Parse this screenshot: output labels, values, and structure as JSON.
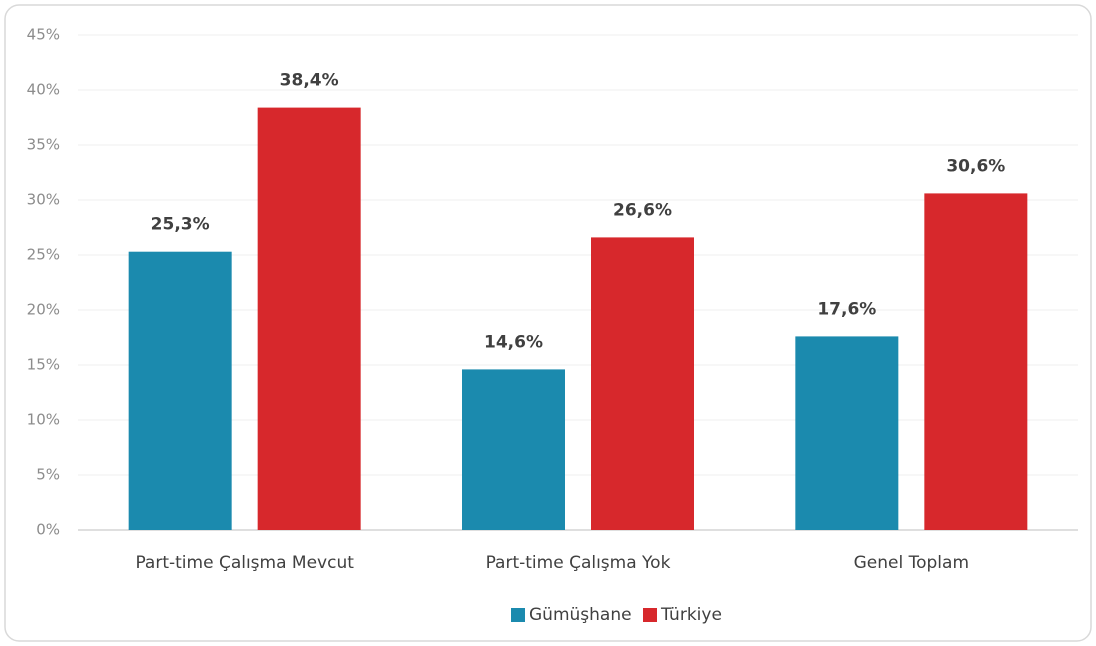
{
  "chart_data": {
    "type": "bar",
    "categories": [
      "Part-time Çalışma Mevcut",
      "Part-time Çalışma Yok",
      "Genel Toplam"
    ],
    "series": [
      {
        "name": "Gümüşhane",
        "color": "#1b8aae",
        "values": [
          25.3,
          14.6,
          17.6
        ],
        "value_labels": [
          "25,3%",
          "14,6%",
          "17,6%"
        ]
      },
      {
        "name": "Türkiye",
        "color": "#d7282c",
        "values": [
          38.4,
          26.6,
          30.6
        ],
        "value_labels": [
          "38,4%",
          "26,6%",
          "30,6%"
        ]
      }
    ],
    "ylim": [
      0,
      45
    ],
    "yticks": [
      {
        "value": 0,
        "label": "0%"
      },
      {
        "value": 5,
        "label": "5%"
      },
      {
        "value": 10,
        "label": "10%"
      },
      {
        "value": 15,
        "label": "15%"
      },
      {
        "value": 20,
        "label": "20%"
      },
      {
        "value": 25,
        "label": "25%"
      },
      {
        "value": 30,
        "label": "30%"
      },
      {
        "value": 35,
        "label": "35%"
      },
      {
        "value": 40,
        "label": "40%"
      },
      {
        "value": 45,
        "label": "45%"
      }
    ],
    "grid": true,
    "legend": "bottom"
  }
}
